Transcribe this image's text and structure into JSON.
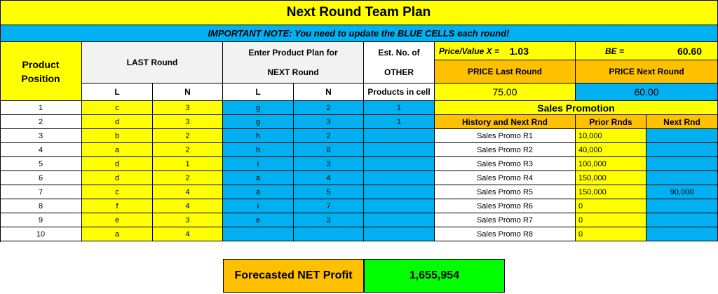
{
  "title": "Next Round Team Plan",
  "note": "IMPORTANT NOTE: You need to update the BLUE CELLS each round!",
  "headers": {
    "product": "Product",
    "position": "Position",
    "last_round": "LAST Round",
    "enter_plan": "Enter Product Plan for",
    "next_round": "NEXT Round",
    "est_no_of": "Est. No. of",
    "other": "OTHER",
    "products_in_cell": "Products in cell",
    "l": "L",
    "n": "N"
  },
  "pricing": {
    "pv_label": "Price/Value X =",
    "pv_value": "1.03",
    "be_label": "BE =",
    "be_value": "60.60",
    "price_last_label": "PRICE Last Round",
    "price_last_value": "75.00",
    "price_next_label": "PRICE Next Round",
    "price_next_value": "60.00"
  },
  "sales_promotion": {
    "title": "Sales Promotion",
    "col_history": "History and Next Rnd",
    "col_prior": "Prior Rnds",
    "col_next": "Next Rnd"
  },
  "rows": [
    {
      "pos": "1",
      "last_l": "c",
      "last_n": "3",
      "next_l": "g",
      "next_n": "2",
      "other": "1"
    },
    {
      "pos": "2",
      "last_l": "d",
      "last_n": "3",
      "next_l": "g",
      "next_n": "3",
      "other": "1"
    },
    {
      "pos": "3",
      "last_l": "b",
      "last_n": "2",
      "next_l": "h",
      "next_n": "2",
      "other": "",
      "promo": "Sales Promo R1",
      "prior": "10,000",
      "next": ""
    },
    {
      "pos": "4",
      "last_l": "a",
      "last_n": "2",
      "next_l": "h",
      "next_n": "8",
      "other": "",
      "promo": "Sales Promo R2",
      "prior": "40,000",
      "next": ""
    },
    {
      "pos": "5",
      "last_l": "d",
      "last_n": "1",
      "next_l": "i",
      "next_n": "3",
      "other": "",
      "promo": "Sales Promo R3",
      "prior": "100,000",
      "next": ""
    },
    {
      "pos": "6",
      "last_l": "d",
      "last_n": "2",
      "next_l": "a",
      "next_n": "4",
      "other": "",
      "promo": "Sales Promo R4",
      "prior": "150,000",
      "next": ""
    },
    {
      "pos": "7",
      "last_l": "c",
      "last_n": "4",
      "next_l": "a",
      "next_n": "5",
      "other": "",
      "promo": "Sales Promo R5",
      "prior": "150,000",
      "next": "90,000"
    },
    {
      "pos": "8",
      "last_l": "f",
      "last_n": "4",
      "next_l": "i",
      "next_n": "7",
      "other": "",
      "promo": "Sales Promo R6",
      "prior": "0",
      "next": ""
    },
    {
      "pos": "9",
      "last_l": "e",
      "last_n": "3",
      "next_l": "e",
      "next_n": "3",
      "other": "",
      "promo": "Sales Promo R7",
      "prior": "0",
      "next": ""
    },
    {
      "pos": "10",
      "last_l": "a",
      "last_n": "4",
      "next_l": "",
      "next_n": "",
      "other": "",
      "promo": "Sales Promo R8",
      "prior": "0",
      "next": ""
    }
  ],
  "profit": {
    "label": "Forecasted NET Profit",
    "value": "1,655,954"
  },
  "colors": {
    "yellow": "#ffff00",
    "blue": "#00b0f0",
    "orange": "#ffc000",
    "green": "#00ff00"
  }
}
